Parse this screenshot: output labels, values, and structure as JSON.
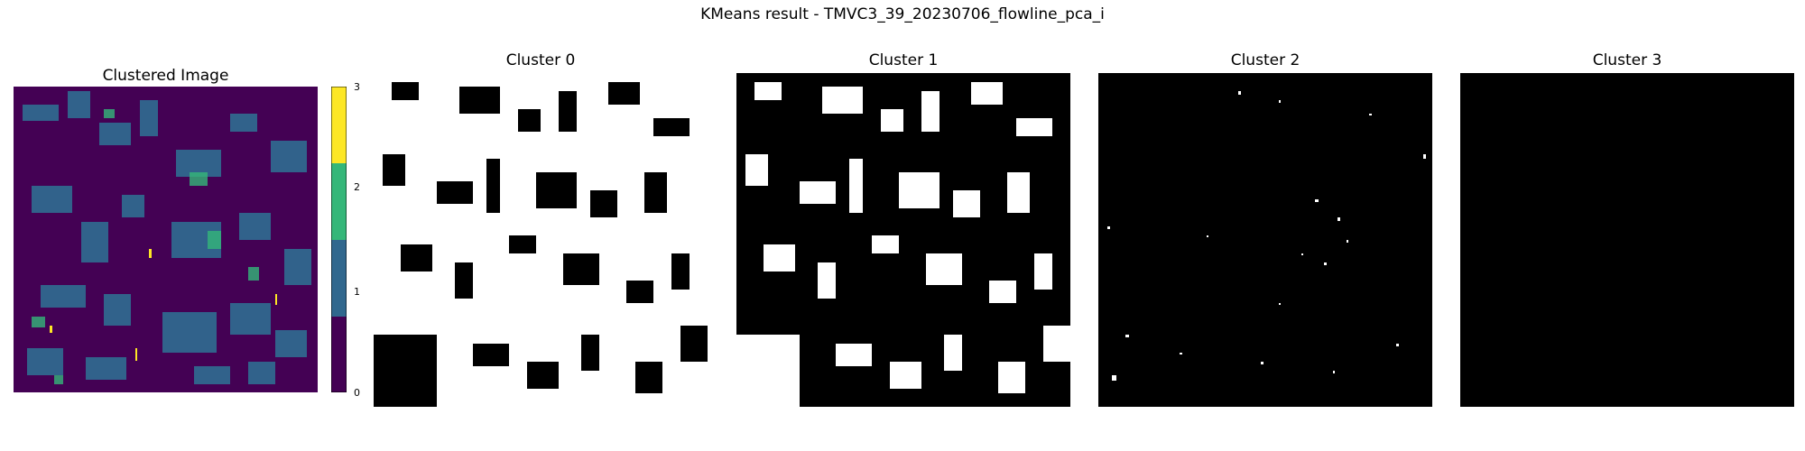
{
  "figure": {
    "title": "KMeans result - TMVC3_39_20230706_flowline_pca_i"
  },
  "panels": {
    "clustered": {
      "title": "Clustered Image"
    },
    "clusters": [
      {
        "title": "Cluster 0"
      },
      {
        "title": "Cluster 1"
      },
      {
        "title": "Cluster 2"
      },
      {
        "title": "Cluster 3"
      }
    ]
  },
  "colorbar": {
    "ticks": [
      "0",
      "1",
      "2",
      "3"
    ],
    "colors": [
      "#440154",
      "#31688e",
      "#35b779",
      "#fde725"
    ]
  },
  "colors": {
    "mask_on": "#ffffff",
    "mask_off": "#000000"
  }
}
